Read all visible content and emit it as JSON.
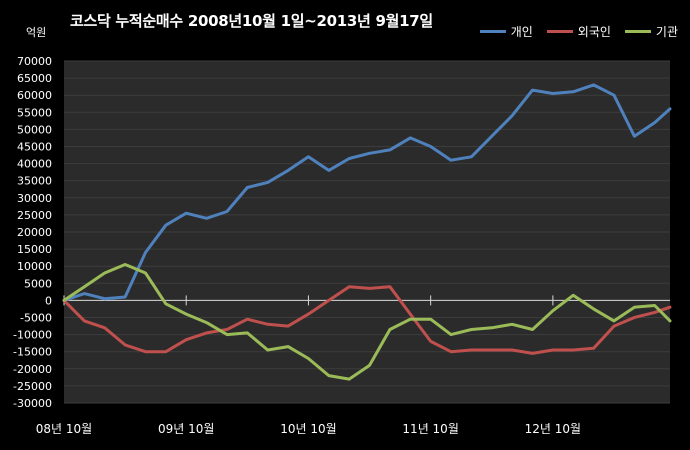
{
  "chart_data": {
    "type": "line",
    "title": "코스닥 누적순매수 2008년10월 1일~2013년 9월17일",
    "ylabel": "억원",
    "ylim": [
      -30000,
      70000
    ],
    "yticks": [
      70000,
      65000,
      60000,
      55000,
      50000,
      45000,
      40000,
      35000,
      30000,
      25000,
      20000,
      15000,
      10000,
      5000,
      0,
      -5000,
      -10000,
      -15000,
      -20000,
      -25000,
      -30000
    ],
    "x_tick_labels": [
      "08년 10월",
      "09년 10월",
      "10년 10월",
      "11년 10월",
      "12년 10월"
    ],
    "grid": true,
    "legend_position": "top-right",
    "x": [
      0,
      2,
      4,
      6,
      8,
      10,
      12,
      14,
      16,
      18,
      20,
      22,
      24,
      26,
      28,
      30,
      32,
      34,
      36,
      38,
      40,
      42,
      44,
      46,
      48,
      50,
      52,
      54,
      56,
      58,
      59.5
    ],
    "series": [
      {
        "name": "개인",
        "color": "#4f81bd",
        "values": [
          0,
          2000,
          500,
          1000,
          14000,
          22000,
          25500,
          24000,
          26000,
          33000,
          34500,
          38000,
          42000,
          38000,
          41500,
          43000,
          44000,
          47500,
          45000,
          41000,
          42000,
          48000,
          54000,
          61500,
          60500,
          61000,
          63000,
          60000,
          48000,
          52000,
          56000
        ]
      },
      {
        "name": "외국인",
        "color": "#c0504d",
        "values": [
          0,
          -6000,
          -8000,
          -13000,
          -15000,
          -15000,
          -11500,
          -9500,
          -8500,
          -5500,
          -7000,
          -7500,
          -4000,
          0,
          4000,
          3500,
          4000,
          -4000,
          -12000,
          -15000,
          -14500,
          -14500,
          -14500,
          -15500,
          -14500,
          -14500,
          -14000,
          -7500,
          -5000,
          -3500,
          -2000
        ]
      },
      {
        "name": "기관",
        "color": "#9bbb59",
        "values": [
          0,
          4000,
          8000,
          10500,
          8000,
          -1000,
          -4000,
          -6500,
          -10000,
          -9500,
          -14500,
          -13500,
          -17000,
          -22000,
          -23000,
          -19000,
          -8500,
          -5500,
          -5500,
          -10000,
          -8500,
          -8000,
          -7000,
          -8500,
          -3000,
          1500,
          -2500,
          -6000,
          -2000,
          -1500,
          -6000
        ]
      }
    ]
  }
}
